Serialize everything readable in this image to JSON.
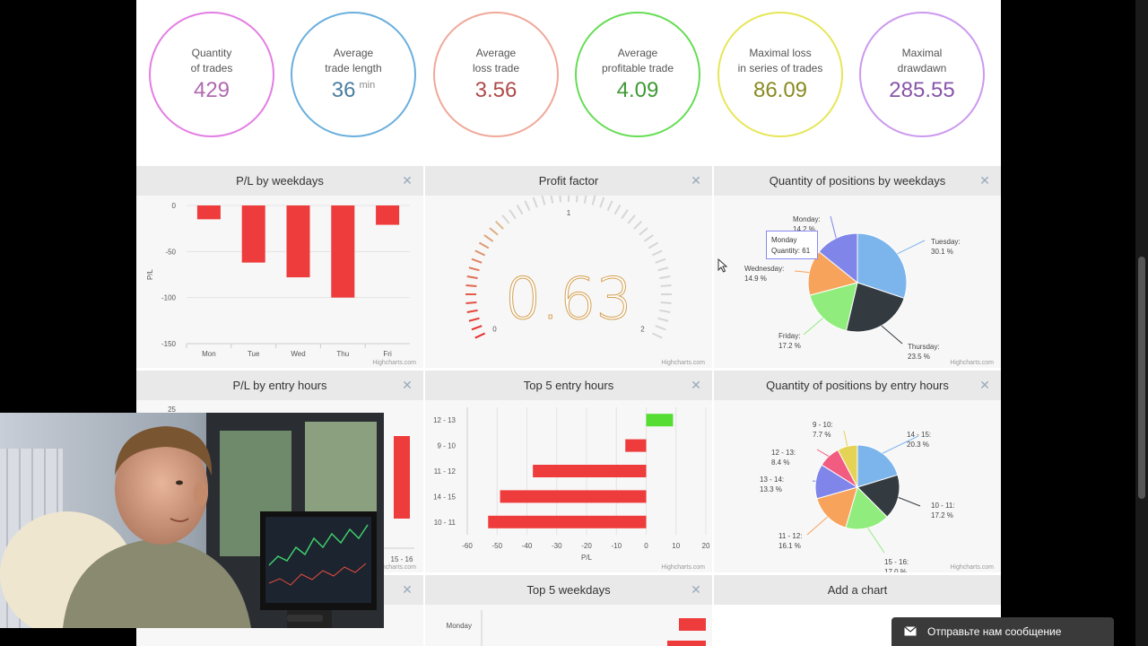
{
  "stats": [
    {
      "label1": "Quantity",
      "label2": "of trades",
      "value": "429",
      "unit": "",
      "ring": "#e37ee3",
      "color": "#b06ab0"
    },
    {
      "label1": "Average",
      "label2": "trade length",
      "value": "36",
      "unit": "min",
      "ring": "#6aafdd",
      "color": "#4a7ea0"
    },
    {
      "label1": "Average",
      "label2": "loss trade",
      "value": "3.56",
      "unit": "",
      "ring": "#f0a89a",
      "color": "#b04a4a"
    },
    {
      "label1": "Average",
      "label2": "profitable trade",
      "value": "4.09",
      "unit": "",
      "ring": "#66dd55",
      "color": "#3e9a34"
    },
    {
      "label1": "Maximal loss",
      "label2": "in series of trades",
      "value": "86.09",
      "unit": "",
      "ring": "#e6e65a",
      "color": "#8a8a22"
    },
    {
      "label1": "Maximal",
      "label2": "drawdawn",
      "value": "285.55",
      "unit": "",
      "ring": "#cc99ee",
      "color": "#8855aa"
    }
  ],
  "panels": {
    "pl_weekdays": {
      "title": "P/L by weekdays"
    },
    "profit_factor": {
      "title": "Profit factor"
    },
    "qty_weekdays": {
      "title": "Quantity of positions by weekdays"
    },
    "pl_hours": {
      "title": "P/L by entry hours"
    },
    "top5_hours": {
      "title": "Top 5 entry hours"
    },
    "qty_hours": {
      "title": "Quantity of positions by entry hours"
    },
    "top5_weekdays": {
      "title": "Top 5 weekdays"
    },
    "add_chart": {
      "title": "Add a chart"
    }
  },
  "close_glyph": "✕",
  "credit": "Highcharts.com",
  "tooltip": {
    "line1": "Monday",
    "line2": "Quantity: 61"
  },
  "chat": {
    "label": "Отправьте нам сообщение"
  },
  "chart_data": [
    {
      "type": "bar",
      "title": "P/L by weekdays",
      "categories": [
        "Mon",
        "Tue",
        "Wed",
        "Thu",
        "Fri"
      ],
      "values": [
        -15,
        -62,
        -78,
        -100,
        -21
      ],
      "ylabel": "P/L",
      "ylim": [
        -150,
        0
      ],
      "yticks": [
        0,
        -50,
        -100,
        -150
      ],
      "color": "#ee3b3b"
    },
    {
      "type": "gauge",
      "title": "Profit factor",
      "value": 0.63,
      "display": "0.63",
      "min": 0,
      "max": 2,
      "ticks": [
        "0",
        "1",
        "2"
      ]
    },
    {
      "type": "pie",
      "title": "Quantity of positions by weekdays",
      "slices": [
        {
          "name": "Tuesday:",
          "pct": "30.1 %",
          "value": 30.1,
          "color": "#7cb5ec"
        },
        {
          "name": "Thursday:",
          "pct": "23.5 %",
          "value": 23.5,
          "color": "#333a40"
        },
        {
          "name": "Friday:",
          "pct": "17.2 %",
          "value": 17.2,
          "color": "#90ed7d"
        },
        {
          "name": "Wednesday:",
          "pct": "14.9 %",
          "value": 14.9,
          "color": "#f7a35c"
        },
        {
          "name": "Monday:",
          "pct": "14.2 %",
          "value": 14.2,
          "color": "#8085e9"
        }
      ]
    },
    {
      "type": "bar",
      "title": "P/L by entry hours",
      "yticks_visible": [
        "25"
      ],
      "categories_visible": [
        "15 - 16"
      ]
    },
    {
      "type": "bar",
      "title": "Top 5 entry hours",
      "orientation": "horizontal",
      "categories": [
        "12 - 13",
        "9 - 10",
        "11 - 12",
        "14 - 15",
        "10 - 11"
      ],
      "values": [
        9,
        -7,
        -38,
        -49,
        -53
      ],
      "colors": [
        "#55dd33",
        "#ee3b3b",
        "#ee3b3b",
        "#ee3b3b",
        "#ee3b3b"
      ],
      "xlabel": "P/L",
      "xlim": [
        -60,
        20
      ],
      "xticks": [
        -60,
        -50,
        -40,
        -30,
        -20,
        -10,
        0,
        10,
        20
      ]
    },
    {
      "type": "pie",
      "title": "Quantity of positions by entry hours",
      "slices": [
        {
          "name": "14 - 15:",
          "pct": "20.3 %",
          "value": 20.3,
          "color": "#7cb5ec"
        },
        {
          "name": "10 - 11:",
          "pct": "17.2 %",
          "value": 17.2,
          "color": "#333a40"
        },
        {
          "name": "15 - 16:",
          "pct": "17.0 %",
          "value": 17.0,
          "color": "#90ed7d"
        },
        {
          "name": "11 - 12:",
          "pct": "16.1 %",
          "value": 16.1,
          "color": "#f7a35c"
        },
        {
          "name": "13 - 14:",
          "pct": "13.3 %",
          "value": 13.3,
          "color": "#8085e9"
        },
        {
          "name": "12 - 13:",
          "pct": "8.4 %",
          "value": 8.4,
          "color": "#f15c80"
        },
        {
          "name": "9 - 10:",
          "pct": "7.7 %",
          "value": 7.7,
          "color": "#e4d354"
        }
      ]
    },
    {
      "type": "bar",
      "title": "Top 5 weekdays",
      "categories_visible": [
        "Monday"
      ]
    }
  ]
}
